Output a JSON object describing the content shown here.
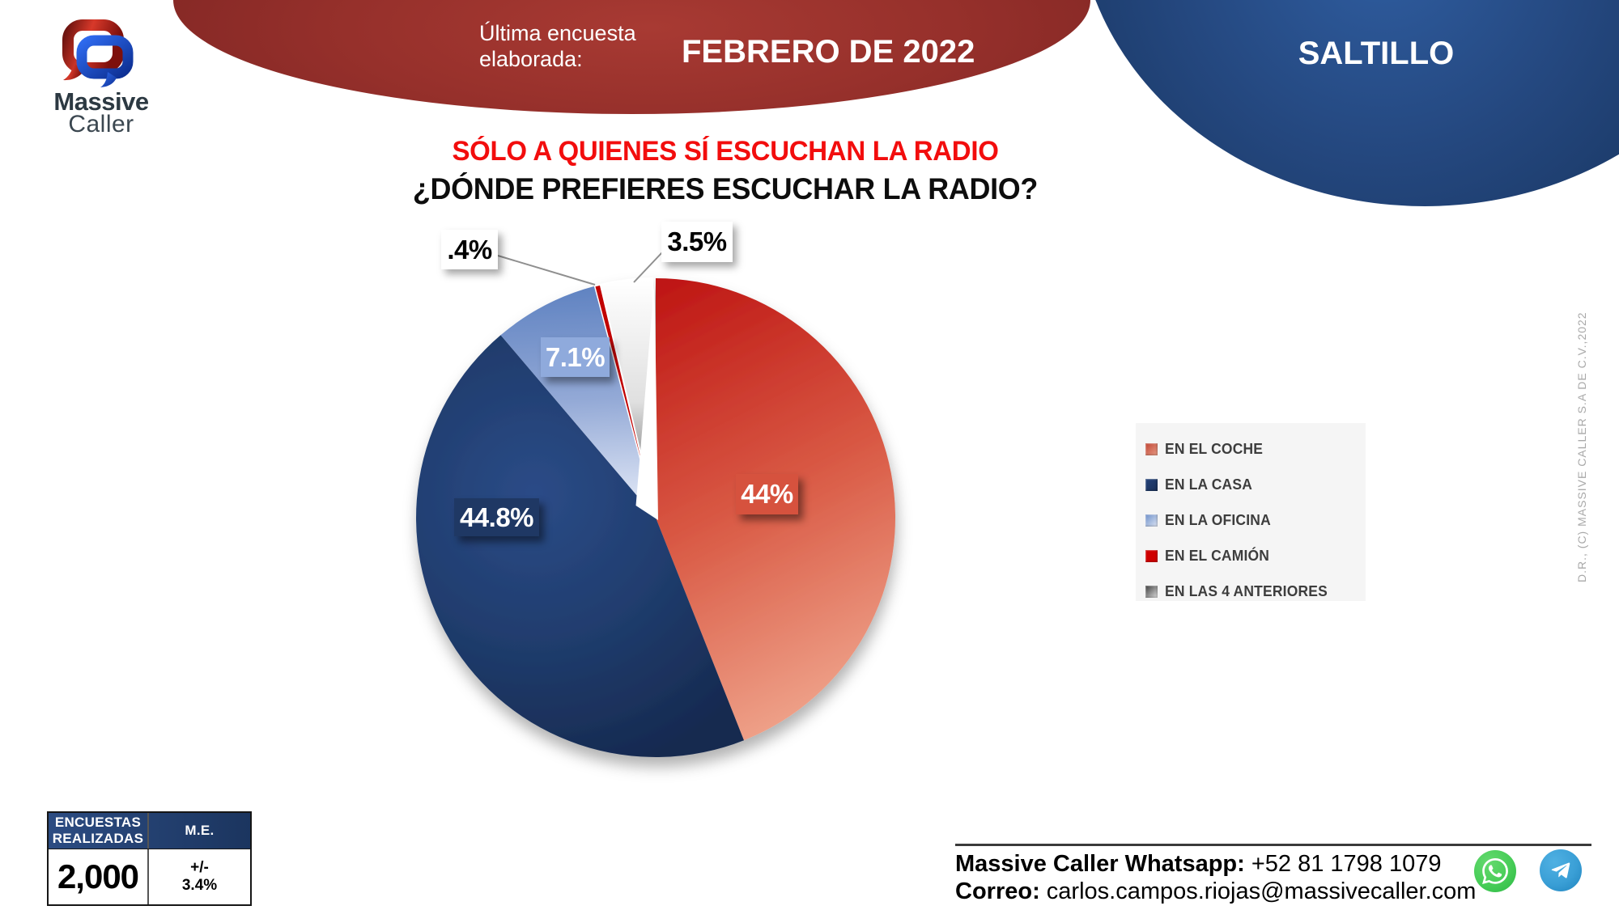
{
  "header": {
    "label_line1": "Última encuesta",
    "label_line2": "elaborada:",
    "date": "FEBRERO DE 2022",
    "city": "SALTILLO",
    "ribbon_color": "#96302b",
    "ellipse_color": "#1d3f73"
  },
  "logo": {
    "name_line1": "Massive",
    "name_line2": "Caller"
  },
  "title": {
    "line1": "SÓLO A QUIENES SÍ ESCUCHAN LA RADIO",
    "line2": "¿DÓNDE PREFIERES ESCUCHAR LA RADIO?",
    "line1_color": "#f20d0d"
  },
  "chart_data": {
    "type": "pie",
    "title": "¿DÓNDE PREFIERES ESCUCHAR LA RADIO?",
    "subtitle": "SÓLO A QUIENES SÍ ESCUCHAN LA RADIO",
    "start_angle_deg": 0,
    "direction": "clockwise",
    "legend_position": "right",
    "categories": [
      "EN EL COCHE",
      "EN LA CASA",
      "EN LA OFICINA",
      "EN EL CAMIÓN",
      "EN LAS 4 ANTERIORES"
    ],
    "values": [
      44,
      44.8,
      7.1,
      0.4,
      3.5
    ],
    "slices": [
      {
        "category": "EN EL COCHE",
        "value": 44,
        "label": "44%",
        "color": "#C0392B",
        "gradient": [
          "#bb0e0e",
          "#d95a45",
          "#f4b49b"
        ]
      },
      {
        "category": "EN LA CASA",
        "value": 44.8,
        "label": "44.8%",
        "color": "#1F3864",
        "gradient": [
          "#2b4b87",
          "#203d6e",
          "#16294f"
        ]
      },
      {
        "category": "EN LA OFICINA",
        "value": 7.1,
        "label": "7.1%",
        "color": "#8FAADC",
        "gradient": [
          "#5c80c0",
          "#93a9d6",
          "#eaeffa"
        ]
      },
      {
        "category": "EN EL CAMIÓN",
        "value": 0.4,
        "label": ".4%",
        "color": "#C00000",
        "gradient": [
          "#c10000"
        ]
      },
      {
        "category": "EN LAS 4 ANTERIORES",
        "value": 3.5,
        "label": "3.5%",
        "color": "#808080",
        "gradient": [
          "#ffffff",
          "#e0e0e0",
          "#454545"
        ]
      }
    ]
  },
  "legend": {
    "items": [
      {
        "label": "EN EL COCHE",
        "swatch": [
          "#c04534",
          "#e89c86"
        ]
      },
      {
        "label": "EN LA CASA",
        "swatch": [
          "#24427a",
          "#1a3058"
        ]
      },
      {
        "label": "EN LA OFICINA",
        "swatch": [
          "#6c8ec9",
          "#dfe7f5"
        ]
      },
      {
        "label": "EN EL CAMIÓN",
        "swatch": [
          "#cf0000",
          "#cf0000"
        ]
      },
      {
        "label": "EN LAS 4 ANTERIORES",
        "swatch": [
          "#3a3a3a",
          "#e0e0e0"
        ]
      }
    ]
  },
  "stats": {
    "col1_header_line1": "ENCUESTAS",
    "col1_header_line2": "REALIZADAS",
    "col2_header": "M.E.",
    "surveys": "2,000",
    "margin_line1": "+/-",
    "margin_line2": "3.4%"
  },
  "contact": {
    "whatsapp_label": "Massive Caller Whatsapp:",
    "whatsapp_number": " +52 81 1798 1079",
    "email_label": "Correo:",
    "email": " carlos.campos.riojas@massivecaller.com"
  },
  "copyright": "D.R., (C) MASSIVE CALLER S.A DE C.V.,2022"
}
